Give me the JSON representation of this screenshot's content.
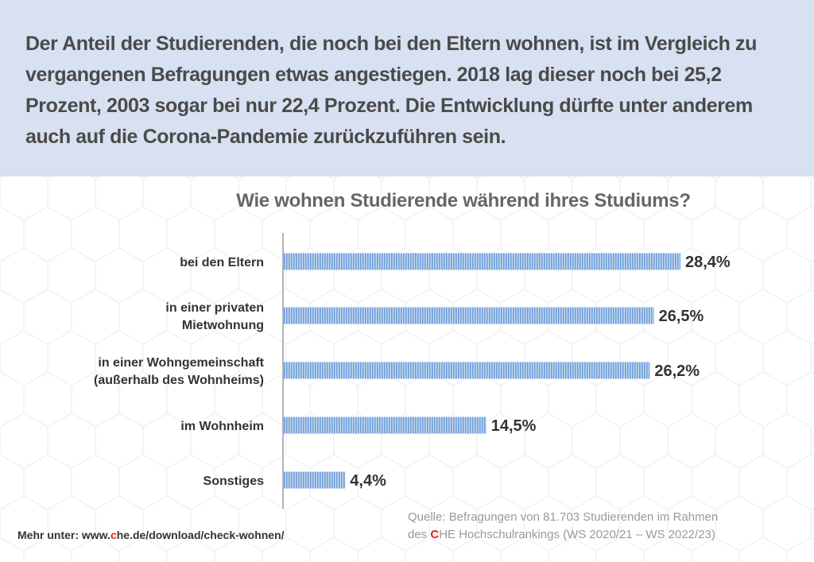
{
  "header": {
    "text": "Der Anteil der Studierenden, die noch bei den Eltern wohnen, ist im Vergleich zu vergangenen Befragungen etwas angestiegen. 2018 lag dieser noch bei 25,2 Prozent, 2003 sogar bei nur 22,4 Prozent. Die Entwicklung dürfte unter anderem auch auf die Corona-Pandemie zurückzuführen sein."
  },
  "footer": {
    "more_prefix": "Mehr unter: www.",
    "more_red": "c",
    "more_suffix": "he.de/download/check-wohnen/",
    "source_line1": "Quelle: Befragungen von 81.703 Studierenden im Rahmen",
    "source_line2_prefix": "des ",
    "source_line2_red": "C",
    "source_line2_suffix": "HE Hochschulrankings (WS 2020/21 – WS 2022/23)"
  },
  "colors": {
    "bar": "#6f9fd8",
    "bar_light": "#c6daf1",
    "accent_red": "#e2231a",
    "header_bg": "#d8e1f1"
  },
  "chart_data": {
    "type": "bar",
    "orientation": "horizontal",
    "title": "Wie wohnen Studierende während ihres Studiums?",
    "categories": [
      [
        "bei den Eltern"
      ],
      [
        "in einer privaten",
        "Mietwohnung"
      ],
      [
        "in einer Wohngemeinschaft",
        "(außerhalb des Wohnheims)"
      ],
      [
        "im Wohnheim"
      ],
      [
        "Sonstiges"
      ]
    ],
    "values": [
      28.4,
      26.5,
      26.2,
      14.5,
      4.4
    ],
    "value_labels": [
      "28,4%",
      "26,5%",
      "26,2%",
      "14,5%",
      "4,4%"
    ],
    "unit": "%",
    "xlim": [
      0,
      30
    ],
    "grid": false
  }
}
